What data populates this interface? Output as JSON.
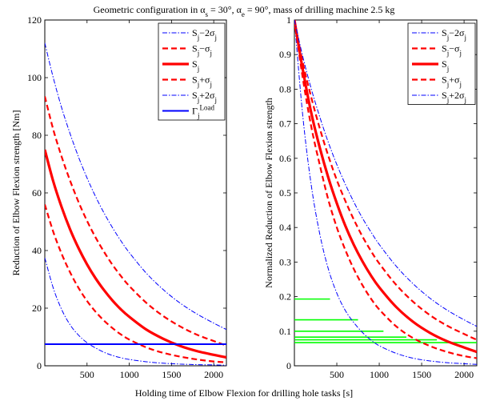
{
  "chart_data": {
    "title": "Geometric configuration in α_s = 30°, α_e = 90°, mass of drilling machine 2.5 kg",
    "xlabel": "Holding time of Elbow Flexion for drilling hole tasks [s]",
    "charts": [
      {
        "type": "line",
        "ylabel": "Reduction of Elbow Flexion strength [Nm]",
        "xlim": [
          0,
          2150
        ],
        "ylim": [
          0,
          120
        ],
        "xticks": [
          "500",
          "1000",
          "1500",
          "2000"
        ],
        "yticks": [
          "0",
          "20",
          "40",
          "60",
          "80",
          "100",
          "120"
        ],
        "legend_position": "top-right",
        "series": [
          {
            "name": "S_j−2σ_j",
            "style": "dashdot",
            "color": "#0000ff",
            "x": [
              0,
              100,
              200,
              300,
              400,
              500,
              600,
              700,
              800,
              900,
              1000,
              1200,
              1400,
              1600,
              1800,
              2000,
              2150
            ],
            "y": [
              37.5,
              27,
              19.5,
              14.2,
              10.6,
              8.0,
              6.2,
              4.7,
              3.6,
              2.8,
              2.2,
              1.4,
              0.9,
              0.6,
              0.4,
              0.3,
              0.2
            ]
          },
          {
            "name": "S_j−σ_j",
            "style": "dashed",
            "color": "#ff0000",
            "x": [
              0,
              100,
              200,
              300,
              400,
              500,
              600,
              700,
              800,
              900,
              1000,
              1200,
              1400,
              1600,
              1800,
              2000,
              2150
            ],
            "y": [
              56,
              46.5,
              38.8,
              32.4,
              27,
              22.5,
              18.8,
              15.7,
              13.1,
              10.9,
              9.1,
              6.4,
              4.5,
              3.2,
              2.2,
              1.5,
              1.2
            ]
          },
          {
            "name": "S_j",
            "style": "solid-thick",
            "color": "#ff0000",
            "x": [
              0,
              100,
              200,
              300,
              400,
              500,
              600,
              700,
              800,
              900,
              1000,
              1200,
              1400,
              1600,
              1800,
              2000,
              2150
            ],
            "y": [
              75,
              64,
              55,
              47.3,
              40.8,
              35.2,
              30.4,
              26.3,
              22.7,
              19.6,
              17,
              12.6,
              9.4,
              6.9,
              5.1,
              3.8,
              2.9
            ]
          },
          {
            "name": "S_j+σ_j",
            "style": "dashed",
            "color": "#ff0000",
            "x": [
              0,
              100,
              200,
              300,
              400,
              500,
              600,
              700,
              800,
              900,
              1000,
              1200,
              1400,
              1600,
              1800,
              2000,
              2150
            ],
            "y": [
              93.5,
              82,
              72.5,
              64.2,
              56.8,
              50.3,
              44.6,
              39.6,
              35.1,
              31.2,
              27.7,
              21.9,
              17.3,
              13.7,
              10.8,
              8.6,
              7
            ]
          },
          {
            "name": "S_j+2σ_j",
            "style": "dashdot",
            "color": "#0000ff",
            "x": [
              0,
              100,
              200,
              300,
              400,
              500,
              600,
              700,
              800,
              900,
              1000,
              1200,
              1400,
              1600,
              1800,
              2000,
              2150
            ],
            "y": [
              112,
              100,
              89.5,
              80.5,
              72.4,
              65.2,
              58.8,
              53.1,
              48,
              43.4,
              39.3,
              32.2,
              26.5,
              21.8,
              18,
              14.8,
              12.6
            ]
          },
          {
            "name": "Γ_j^Load",
            "style": "solid",
            "color": "#0000ff",
            "x": [
              0,
              2150
            ],
            "y": [
              7.5,
              7.5
            ]
          }
        ]
      },
      {
        "type": "line",
        "ylabel": "Normalized Reduction of Elbow Flexion strength",
        "xlim": [
          0,
          2150
        ],
        "ylim": [
          0,
          1
        ],
        "xticks": [
          "500",
          "1000",
          "1500",
          "2000"
        ],
        "yticks": [
          "0",
          "0.1",
          "0.2",
          "0.3",
          "0.4",
          "0.5",
          "0.6",
          "0.7",
          "0.8",
          "0.9",
          "1"
        ],
        "legend_position": "top-right",
        "series": [
          {
            "name": "S_j−2σ_j",
            "style": "dashdot",
            "color": "#0000ff",
            "x": [
              0,
              100,
              200,
              300,
              400,
              500,
              600,
              700,
              800,
              900,
              1000,
              1200,
              1400,
              1600,
              1800,
              2000,
              2150
            ],
            "y": [
              1,
              0.72,
              0.52,
              0.38,
              0.28,
              0.21,
              0.16,
              0.125,
              0.097,
              0.075,
              0.058,
              0.036,
              0.022,
              0.014,
              0.009,
              0.006,
              0.004
            ]
          },
          {
            "name": "S_j−σ_j",
            "style": "dashed",
            "color": "#ff0000",
            "x": [
              0,
              100,
              200,
              300,
              400,
              500,
              600,
              700,
              800,
              900,
              1000,
              1200,
              1400,
              1600,
              1800,
              2000,
              2150
            ],
            "y": [
              1,
              0.83,
              0.69,
              0.58,
              0.48,
              0.4,
              0.335,
              0.28,
              0.234,
              0.195,
              0.163,
              0.114,
              0.08,
              0.057,
              0.04,
              0.028,
              0.022
            ]
          },
          {
            "name": "S_j",
            "style": "solid-thick",
            "color": "#ff0000",
            "x": [
              0,
              100,
              200,
              300,
              400,
              500,
              600,
              700,
              800,
              900,
              1000,
              1200,
              1400,
              1600,
              1800,
              2000,
              2150
            ],
            "y": [
              1,
              0.855,
              0.73,
              0.63,
              0.544,
              0.47,
              0.405,
              0.35,
              0.303,
              0.262,
              0.227,
              0.17,
              0.127,
              0.095,
              0.071,
              0.053,
              0.04
            ]
          },
          {
            "name": "S_j+σ_j",
            "style": "dashed",
            "color": "#ff0000",
            "x": [
              0,
              100,
              200,
              300,
              400,
              500,
              600,
              700,
              800,
              900,
              1000,
              1200,
              1400,
              1600,
              1800,
              2000,
              2150
            ],
            "y": [
              1,
              0.876,
              0.775,
              0.686,
              0.607,
              0.537,
              0.477,
              0.423,
              0.375,
              0.333,
              0.296,
              0.234,
              0.185,
              0.146,
              0.116,
              0.092,
              0.075
            ]
          },
          {
            "name": "S_j+2σ_j",
            "style": "dashdot",
            "color": "#0000ff",
            "x": [
              0,
              100,
              200,
              300,
              400,
              500,
              600,
              700,
              800,
              900,
              1000,
              1200,
              1400,
              1600,
              1800,
              2000,
              2150
            ],
            "y": [
              1,
              0.893,
              0.8,
              0.719,
              0.646,
              0.582,
              0.525,
              0.474,
              0.428,
              0.388,
              0.351,
              0.288,
              0.237,
              0.195,
              0.161,
              0.133,
              0.114
            ]
          }
        ],
        "reference_lines": {
          "color": "#00ff00",
          "segments": [
            {
              "y": 0.193,
              "x0": 0,
              "x1": 420
            },
            {
              "y": 0.133,
              "x0": 0,
              "x1": 750
            },
            {
              "y": 0.1,
              "x0": 0,
              "x1": 1050
            },
            {
              "y": 0.083,
              "x0": 0,
              "x1": 1320
            },
            {
              "y": 0.075,
              "x0": 0,
              "x1": 1680
            },
            {
              "y": 0.067,
              "x0": 0,
              "x1": 2150
            }
          ]
        }
      }
    ]
  }
}
